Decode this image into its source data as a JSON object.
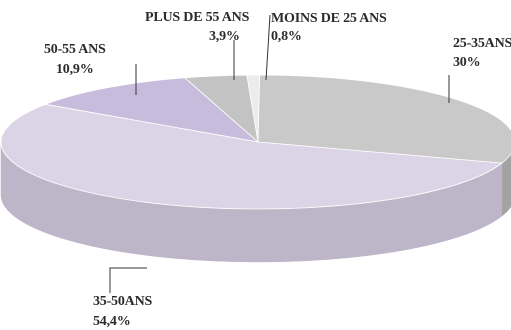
{
  "chart_data": {
    "type": "pie",
    "style": "3d",
    "colors": {
      "outline": "#ffffff",
      "leader": "#333333"
    },
    "slices": [
      {
        "label": "MOINS DE 25 ANS",
        "value_text": "0,8%",
        "value": 0.8,
        "color": "#ececec",
        "side": "#d6d6d6"
      },
      {
        "label": "25-35ANS",
        "value_text": "30%",
        "value": 30.0,
        "color": "#c9c9c9",
        "side": "#a3a3a3"
      },
      {
        "label": "35-50ANS",
        "value_text": "54,4%",
        "value": 54.4,
        "color": "#dbd4e6",
        "side": "#bdb5c8"
      },
      {
        "label": "50-55 ANS",
        "value_text": "10,9%",
        "value": 10.9,
        "color": "#c8bcdc",
        "side": "#a79ebd"
      },
      {
        "label": "PLUS DE 55 ANS",
        "value_text": "3,9%",
        "value": 3.9,
        "color": "#c3c3c3",
        "side": "#9e9e9e"
      }
    ]
  }
}
